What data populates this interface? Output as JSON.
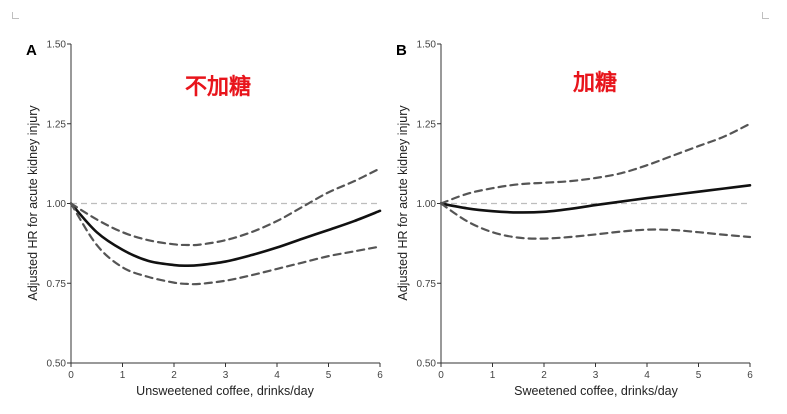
{
  "chart_data": [
    {
      "type": "line",
      "panel_label": "A",
      "annotation": "不加糖",
      "xlabel": "Unsweetened coffee, drinks/day",
      "ylabel": "Adjusted HR for acute kidney injury",
      "xlim": [
        0,
        6
      ],
      "ylim": [
        0.5,
        1.5
      ],
      "x_ticks": [
        "0",
        "1",
        "2",
        "3",
        "4",
        "5",
        "6"
      ],
      "y_ticks": [
        "0.50",
        "0.75",
        "1.00",
        "1.25",
        "1.50"
      ],
      "reference_line": 1.0,
      "x": [
        0,
        0.5,
        1,
        1.5,
        2,
        2.25,
        2.5,
        3,
        3.5,
        4,
        4.5,
        5,
        5.5,
        6
      ],
      "series": [
        {
          "role": "estimate",
          "values": [
            1.0,
            0.91,
            0.855,
            0.82,
            0.807,
            0.805,
            0.807,
            0.818,
            0.838,
            0.862,
            0.89,
            0.917,
            0.945,
            0.977
          ]
        },
        {
          "role": "upper-ci",
          "values": [
            1.0,
            0.95,
            0.91,
            0.885,
            0.872,
            0.87,
            0.871,
            0.885,
            0.91,
            0.945,
            0.99,
            1.035,
            1.07,
            1.11
          ]
        },
        {
          "role": "lower-ci",
          "values": [
            1.0,
            0.87,
            0.8,
            0.77,
            0.752,
            0.748,
            0.748,
            0.758,
            0.775,
            0.795,
            0.815,
            0.835,
            0.85,
            0.865
          ]
        }
      ]
    },
    {
      "type": "line",
      "panel_label": "B",
      "annotation": "加糖",
      "xlabel": "Sweetened coffee, drinks/day",
      "ylabel": "Adjusted HR for acute kidney injury",
      "xlim": [
        0,
        6
      ],
      "ylim": [
        0.5,
        1.5
      ],
      "x_ticks": [
        "0",
        "1",
        "2",
        "3",
        "4",
        "5",
        "6"
      ],
      "y_ticks": [
        "0.50",
        "0.75",
        "1.00",
        "1.25",
        "1.50"
      ],
      "reference_line": 1.0,
      "x": [
        0,
        0.5,
        1,
        1.5,
        2,
        2.5,
        3,
        3.5,
        4,
        4.5,
        5,
        5.5,
        6
      ],
      "series": [
        {
          "role": "estimate",
          "values": [
            1.0,
            0.985,
            0.976,
            0.972,
            0.974,
            0.983,
            0.995,
            1.006,
            1.017,
            1.027,
            1.037,
            1.047,
            1.057
          ]
        },
        {
          "role": "upper-ci",
          "values": [
            1.0,
            1.03,
            1.048,
            1.06,
            1.065,
            1.07,
            1.08,
            1.095,
            1.12,
            1.15,
            1.18,
            1.21,
            1.25
          ]
        },
        {
          "role": "lower-ci",
          "values": [
            1.0,
            0.945,
            0.91,
            0.893,
            0.89,
            0.895,
            0.903,
            0.912,
            0.918,
            0.917,
            0.91,
            0.902,
            0.895
          ]
        }
      ]
    }
  ]
}
